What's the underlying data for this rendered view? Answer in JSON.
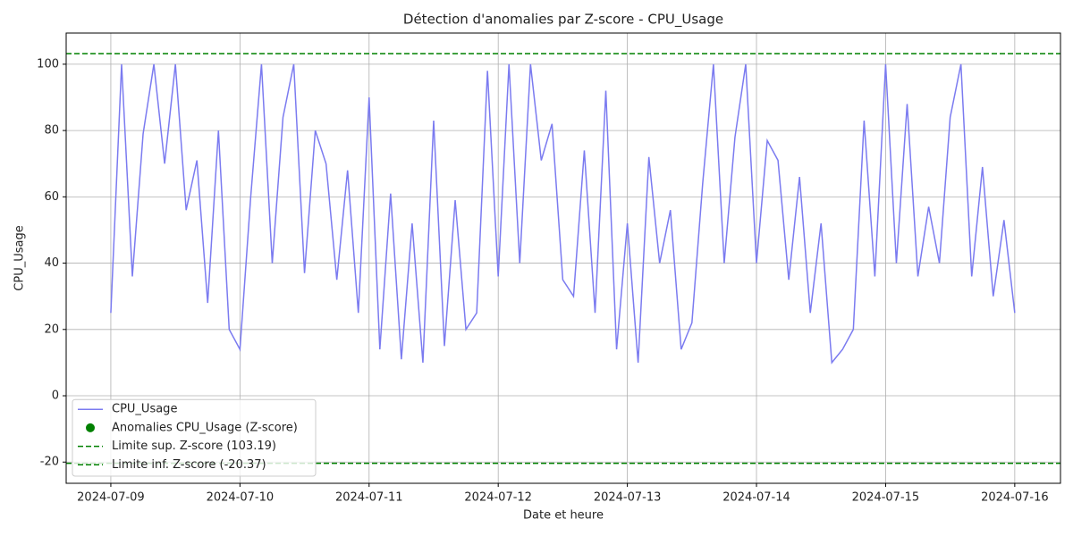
{
  "chart_data": {
    "type": "line",
    "title": "Détection d'anomalies par Z-score - CPU_Usage",
    "x_label": "Date et heure",
    "y_label": "CPU_Usage",
    "x": [
      0,
      2,
      4,
      6,
      8,
      10,
      12,
      14,
      16,
      18,
      20,
      22,
      24,
      26,
      28,
      30,
      32,
      34,
      36,
      38,
      40,
      42,
      44,
      46,
      48,
      50,
      52,
      54,
      56,
      58,
      60,
      62,
      64,
      66,
      68,
      70,
      72,
      74,
      76,
      78,
      80,
      82,
      84,
      86,
      88,
      90,
      92,
      94,
      96,
      98,
      100,
      102,
      104,
      106,
      108,
      110,
      112,
      114,
      116,
      118,
      120,
      122,
      124,
      126,
      128,
      130,
      132,
      134,
      136,
      138,
      140,
      142,
      144,
      146,
      148,
      150,
      152,
      154,
      156,
      158,
      160,
      162,
      164,
      166,
      168
    ],
    "series": [
      {
        "name": "CPU_Usage",
        "color": "#7b7bf0",
        "values": [
          25,
          100,
          36,
          79,
          100,
          70,
          100,
          56,
          71,
          28,
          80,
          20,
          14,
          60,
          100,
          40,
          84,
          100,
          37,
          80,
          70,
          35,
          68,
          25,
          90,
          14,
          61,
          11,
          52,
          10,
          83,
          15,
          59,
          20,
          25,
          98,
          36,
          100,
          40,
          100,
          71,
          82,
          35,
          30,
          74,
          25,
          92,
          14,
          52,
          10,
          72,
          40,
          56,
          14,
          22,
          64,
          100,
          40,
          78,
          100,
          40,
          77,
          71,
          35,
          66,
          25,
          52,
          10,
          14,
          20,
          83,
          36,
          100,
          40,
          88,
          36,
          57,
          40,
          84,
          100,
          36,
          69,
          30,
          53,
          25
        ]
      },
      {
        "name": "Anomalies CPU_Usage (Z-score)",
        "color": "#008000",
        "kind": "scatter",
        "x": [],
        "values": []
      }
    ],
    "hlines": [
      {
        "name": "Limite sup. Z-score (103.19)",
        "value": 103.19,
        "color": "#008000",
        "style": "dashed"
      },
      {
        "name": "Limite inf. Z-score (-20.37)",
        "value": -20.37,
        "color": "#008000",
        "style": "dashed"
      }
    ],
    "xlim": [
      -8.3,
      176.5
    ],
    "xticks": [
      {
        "value": 0,
        "label": "2024-07-09"
      },
      {
        "value": 24,
        "label": "2024-07-10"
      },
      {
        "value": 48,
        "label": "2024-07-11"
      },
      {
        "value": 72,
        "label": "2024-07-12"
      },
      {
        "value": 96,
        "label": "2024-07-13"
      },
      {
        "value": 120,
        "label": "2024-07-14"
      },
      {
        "value": 144,
        "label": "2024-07-15"
      },
      {
        "value": 168,
        "label": "2024-07-16"
      }
    ],
    "ylim": [
      -26.4,
      109.4
    ],
    "yticks": [
      -20,
      0,
      20,
      40,
      60,
      80,
      100
    ],
    "grid": true,
    "legend": "lower left"
  }
}
